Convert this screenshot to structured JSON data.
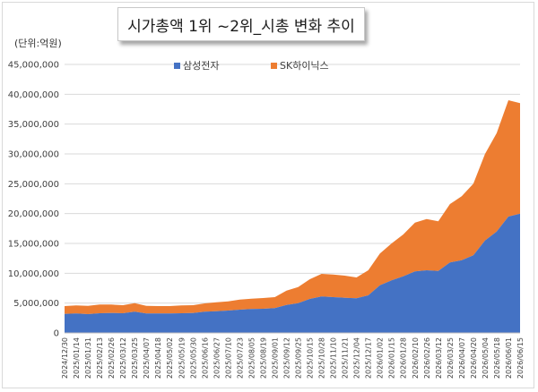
{
  "title": "시가총액 1위 ~2위_시총 변화 추이",
  "unit_label": "(단위:억원)",
  "colors": {
    "samsung": "#4472C4",
    "skhynix": "#ED7D31",
    "grid": "#d9d9d9"
  },
  "chart_data": {
    "type": "area",
    "stacked": true,
    "title": "시가총액 1위 ~2위_시총 변화 추이",
    "ylabel": "(단위:억원)",
    "xlabel": "",
    "ylim": [
      0,
      45000000
    ],
    "y_ticks": [
      0,
      5000000,
      10000000,
      15000000,
      20000000,
      25000000,
      30000000,
      35000000,
      40000000,
      45000000
    ],
    "y_tick_labels": [
      "0",
      "5,000,000",
      "10,000,000",
      "15,000,000",
      "20,000,000",
      "25,000,000",
      "30,000,000",
      "35,000,000",
      "40,000,000",
      "45,000,000"
    ],
    "grid": true,
    "legend_position": "top-center",
    "categories": [
      "2024/12/30",
      "2025/01/14",
      "2025/01/31",
      "2025/02/13",
      "2025/02/26",
      "2025/03/12",
      "2025/03/25",
      "2025/04/07",
      "2025/04/18",
      "2025/05/02",
      "2025/05/19",
      "2025/05/30",
      "2025/06/16",
      "2025/06/27",
      "2025/07/10",
      "2025/07/23",
      "2025/08/05",
      "2025/08/19",
      "2025/09/01",
      "2025/09/12",
      "2025/09/25",
      "2025/10/15",
      "2025/10/28",
      "2025/11/10",
      "2025/11/21",
      "2025/12/04",
      "2025/12/17",
      "2026/01/02",
      "2026/01/15",
      "2026/01/28",
      "2026/02/10",
      "2026/02/26",
      "2026/03/12",
      "2026/03/25",
      "2026/04/07",
      "2026/04/20",
      "2026/05/04",
      "2026/05/18",
      "2026/06/01",
      "2026/06/15"
    ],
    "series": [
      {
        "name": "삼성전자",
        "color": "#4472C4",
        "values": [
          3200000,
          3250000,
          3150000,
          3300000,
          3350000,
          3300000,
          3550000,
          3250000,
          3250000,
          3250000,
          3300000,
          3350000,
          3550000,
          3650000,
          3750000,
          3900000,
          4000000,
          4050000,
          4150000,
          4700000,
          5000000,
          5700000,
          6100000,
          6000000,
          5900000,
          5800000,
          6300000,
          8000000,
          8800000,
          9500000,
          10300000,
          10500000,
          10400000,
          11800000,
          12200000,
          13000000,
          15500000,
          17000000,
          19500000,
          20000000
        ]
      },
      {
        "name": "SK하이닉스",
        "color": "#ED7D31",
        "values": [
          1300000,
          1350000,
          1400000,
          1450000,
          1400000,
          1350000,
          1450000,
          1300000,
          1250000,
          1250000,
          1300000,
          1300000,
          1400000,
          1500000,
          1550000,
          1700000,
          1750000,
          1800000,
          1850000,
          2400000,
          2700000,
          3300000,
          3800000,
          3800000,
          3700000,
          3500000,
          4200000,
          5300000,
          6200000,
          7000000,
          8200000,
          8600000,
          8300000,
          9800000,
          10700000,
          12000000,
          14500000,
          16500000,
          19500000,
          18500000
        ]
      }
    ]
  }
}
